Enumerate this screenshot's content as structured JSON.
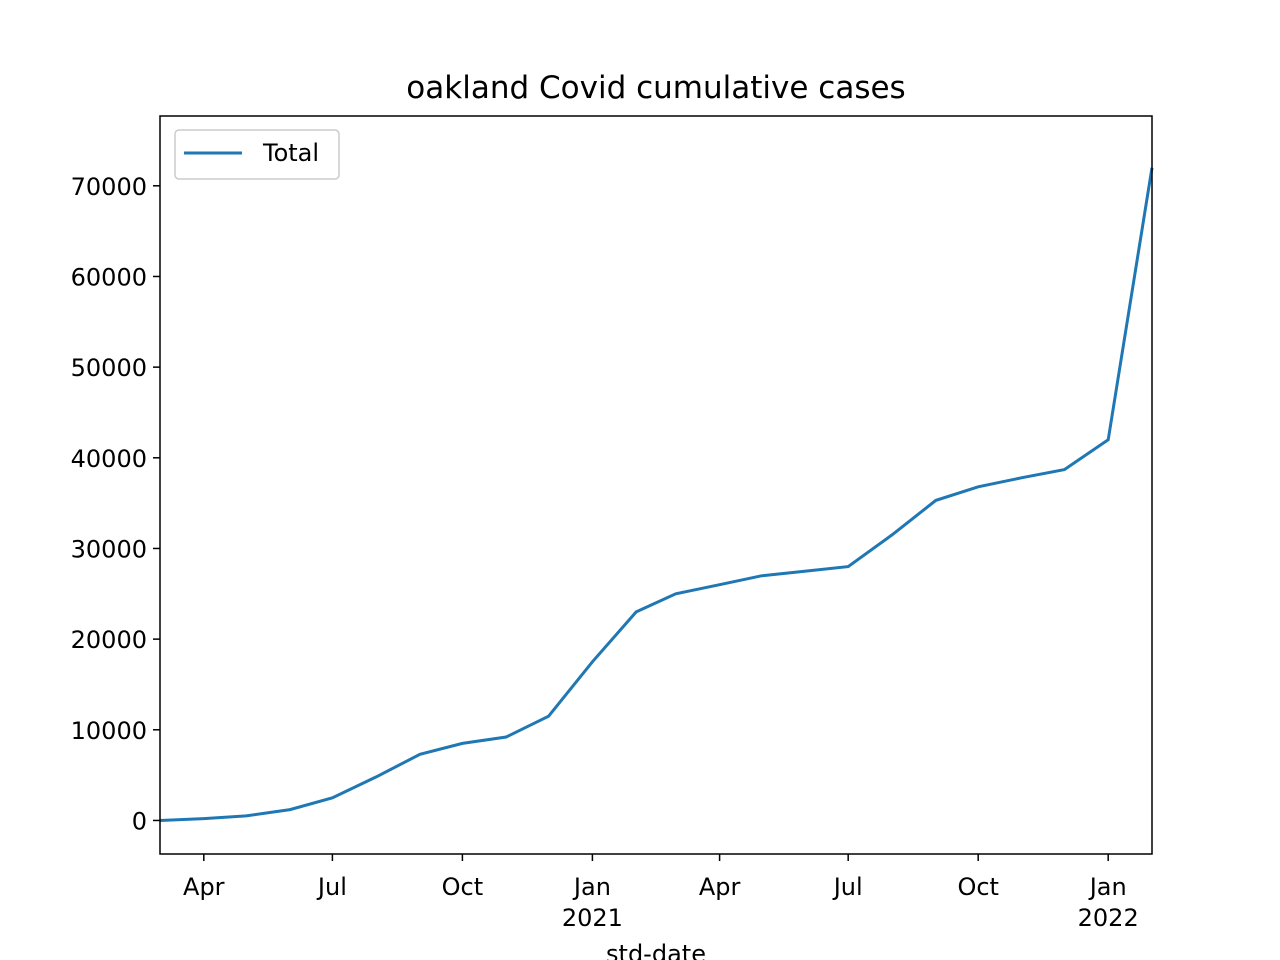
{
  "chart_data": {
    "type": "line",
    "title": "oakland Covid cumulative cases",
    "x_label": "std-date",
    "x": [
      "2020-03",
      "2020-04",
      "2020-05",
      "2020-06",
      "2020-07",
      "2020-08",
      "2020-09",
      "2020-10",
      "2020-11",
      "2020-12",
      "2021-01",
      "2021-02",
      "2021-03",
      "2021-04",
      "2021-05",
      "2021-06",
      "2021-07",
      "2021-08",
      "2021-09",
      "2021-10",
      "2021-11",
      "2021-12",
      "2022-01",
      "2022-02"
    ],
    "series": [
      {
        "name": "Total",
        "color": "#1f77b4",
        "values": [
          0,
          200,
          500,
          1200,
          2500,
          4800,
          7300,
          8500,
          9200,
          11500,
          17500,
          23000,
          25000,
          26000,
          27000,
          27500,
          28000,
          31500,
          35300,
          36800,
          37800,
          38700,
          42000,
          72000
        ]
      }
    ],
    "xlim": [
      "2020-03",
      "2022-02"
    ],
    "xticks": [
      {
        "value": "2020-04",
        "label": "Apr"
      },
      {
        "value": "2020-07",
        "label": "Jul"
      },
      {
        "value": "2020-10",
        "label": "Oct"
      },
      {
        "value": "2021-01",
        "label": "Jan\n2021"
      },
      {
        "value": "2021-04",
        "label": "Apr"
      },
      {
        "value": "2021-07",
        "label": "Jul"
      },
      {
        "value": "2021-10",
        "label": "Oct"
      },
      {
        "value": "2022-01",
        "label": "Jan\n2022"
      }
    ],
    "ylim": [
      -3700,
      77700
    ],
    "yticks": [
      0,
      10000,
      20000,
      30000,
      40000,
      50000,
      60000,
      70000
    ],
    "legend": "upper left",
    "grid": false
  }
}
